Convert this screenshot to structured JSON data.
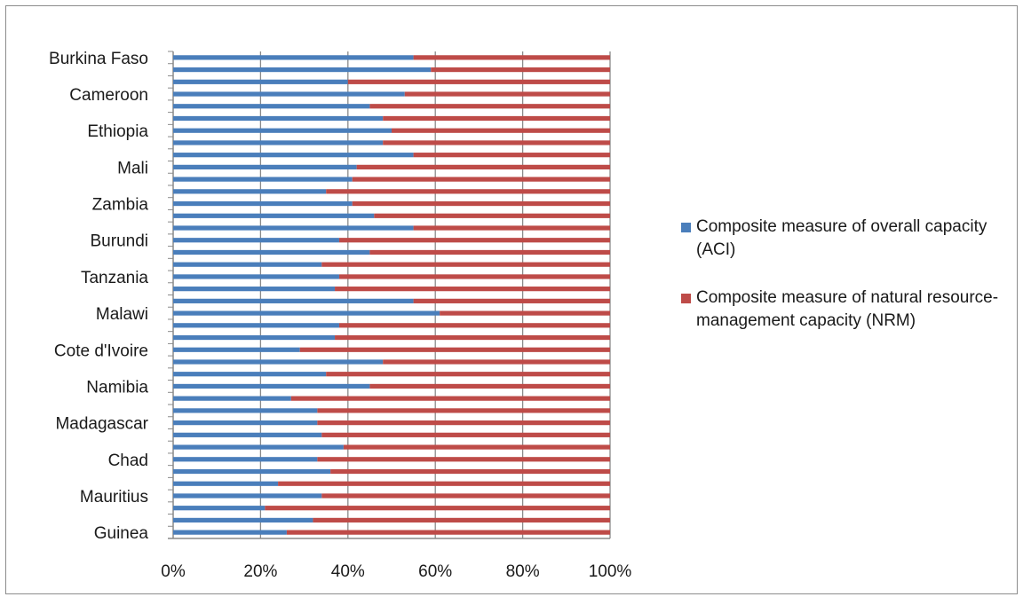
{
  "chart_data": {
    "type": "bar",
    "orientation": "horizontal",
    "stacked": "percent",
    "title": "",
    "xlabel": "",
    "ylabel": "",
    "xlim": [
      0,
      100
    ],
    "x_tick_labels": [
      "0%",
      "20%",
      "40%",
      "60%",
      "80%",
      "100%"
    ],
    "visible_category_labels": [
      "Burkina Faso",
      "Cameroon",
      "Ethiopia",
      "Mali",
      "Zambia",
      "Burundi",
      "Tanzania",
      "Malawi",
      "Cote d'Ivoire",
      "Namibia",
      "Madagascar",
      "Chad",
      "Mauritius",
      "Guinea"
    ],
    "categories": [
      "Burkina Faso",
      "",
      "",
      "Cameroon",
      "",
      "",
      "Ethiopia",
      "",
      "",
      "Mali",
      "",
      "",
      "Zambia",
      "",
      "",
      "Burundi",
      "",
      "",
      "Tanzania",
      "",
      "",
      "Malawi",
      "",
      "",
      "Cote d'Ivoire",
      "",
      "",
      "Namibia",
      "",
      "",
      "Madagascar",
      "",
      "",
      "Chad",
      "",
      "",
      "Mauritius",
      "",
      "",
      "Guinea"
    ],
    "series": [
      {
        "name": "Composite measure of overall capacity (ACI)",
        "color": "#4a7ebb",
        "values": [
          55,
          59,
          40,
          53,
          45,
          48,
          50,
          48,
          55,
          42,
          41,
          35,
          41,
          46,
          55,
          38,
          45,
          34,
          38,
          37,
          55,
          61,
          38,
          37,
          29,
          48,
          35,
          45,
          27,
          33,
          33,
          34,
          39,
          33,
          36,
          24,
          34,
          21,
          32,
          26
        ]
      },
      {
        "name": "Composite measure of natural resource-management capacity (NRM)",
        "color": "#be4b48",
        "values": [
          45,
          41,
          60,
          47,
          55,
          52,
          50,
          52,
          45,
          58,
          59,
          65,
          59,
          54,
          45,
          62,
          55,
          66,
          62,
          63,
          45,
          39,
          62,
          63,
          71,
          52,
          65,
          55,
          73,
          67,
          67,
          66,
          61,
          67,
          64,
          76,
          66,
          79,
          68,
          74
        ]
      }
    ],
    "grid": true,
    "legend_position": "right"
  }
}
